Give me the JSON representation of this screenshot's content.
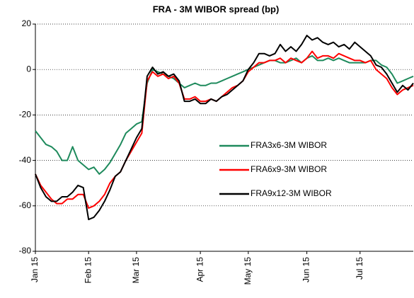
{
  "chart_data": {
    "type": "line",
    "title": "FRA - 3M WIBOR spread (bp)",
    "categories": [
      "Jan 15",
      null,
      null,
      null,
      null,
      null,
      null,
      null,
      null,
      null,
      "Feb 15",
      null,
      null,
      null,
      null,
      null,
      null,
      null,
      null,
      "Mar 15",
      null,
      null,
      null,
      null,
      null,
      null,
      null,
      null,
      null,
      null,
      null,
      "Apr 15",
      null,
      null,
      null,
      null,
      null,
      null,
      null,
      null,
      "May 15",
      null,
      null,
      null,
      null,
      null,
      null,
      null,
      null,
      null,
      null,
      "Jun 15",
      null,
      null,
      null,
      null,
      null,
      null,
      null,
      null,
      null,
      "Jul 15",
      null,
      null,
      null,
      null,
      null,
      null,
      null,
      null,
      null,
      null
    ],
    "series": [
      {
        "name": "FRA3x6-3M WIBOR",
        "color": "#1e8a5c",
        "values": [
          -27,
          -30,
          -33,
          -34,
          -36,
          -40,
          -40,
          -34,
          -40,
          -42,
          -44,
          -43,
          -46,
          -44,
          -41,
          -37,
          -33,
          -28,
          -26,
          -24,
          -23,
          -6,
          0,
          -1,
          -2,
          -3,
          -4,
          -6,
          -8,
          -7,
          -6,
          -7,
          -7,
          -6,
          -6,
          -5,
          -4,
          -3,
          -2,
          -1,
          0,
          1,
          2,
          3,
          4,
          4,
          3,
          3,
          4,
          5,
          3,
          5,
          6,
          4,
          4,
          5,
          4,
          5,
          4,
          3,
          3,
          3,
          3,
          4,
          4,
          2,
          1,
          -2,
          -6,
          -5,
          -4,
          -3
        ]
      },
      {
        "name": "FRA6x9-3M WIBOR",
        "color": "#ff0000",
        "values": [
          -46,
          -51,
          -54,
          -57,
          -59,
          -59,
          -57,
          -57,
          -55,
          -55,
          -61,
          -60,
          -58,
          -55,
          -50,
          -47,
          -45,
          -40,
          -36,
          -32,
          -28,
          -5,
          -1,
          -3,
          -2,
          -4,
          -3,
          -6,
          -13,
          -13,
          -12,
          -14,
          -14,
          -13,
          -14,
          -12,
          -10,
          -8,
          -7,
          -5,
          -1,
          1,
          3,
          3,
          4,
          4,
          5,
          3,
          5,
          4,
          3,
          5,
          8,
          5,
          6,
          6,
          5,
          7,
          6,
          5,
          4,
          4,
          3,
          4,
          0,
          -2,
          -4,
          -8,
          -11,
          -9,
          -8,
          -7
        ]
      },
      {
        "name": "FRA9x12-3M WIBOR",
        "color": "#000000",
        "values": [
          -46,
          -52,
          -56,
          -58,
          -58,
          -56,
          -56,
          -54,
          -51,
          -52,
          -66,
          -65,
          -62,
          -58,
          -53,
          -47,
          -45,
          -40,
          -35,
          -30,
          -26,
          -3,
          1,
          -2,
          -1,
          -3,
          -2,
          -5,
          -14,
          -14,
          -13,
          -15,
          -15,
          -13,
          -14,
          -12,
          -11,
          -9,
          -7,
          -5,
          0,
          3,
          7,
          7,
          6,
          7,
          11,
          8,
          10,
          8,
          11,
          15,
          13,
          14,
          12,
          11,
          12,
          10,
          11,
          9,
          12,
          10,
          8,
          6,
          2,
          1,
          -2,
          -6,
          -10,
          -7,
          -9,
          -6
        ]
      }
    ],
    "ylim": [
      -80,
      20
    ],
    "yticks": [
      -80,
      -60,
      -40,
      -20,
      0,
      20
    ],
    "grid": true,
    "legend": "right"
  }
}
